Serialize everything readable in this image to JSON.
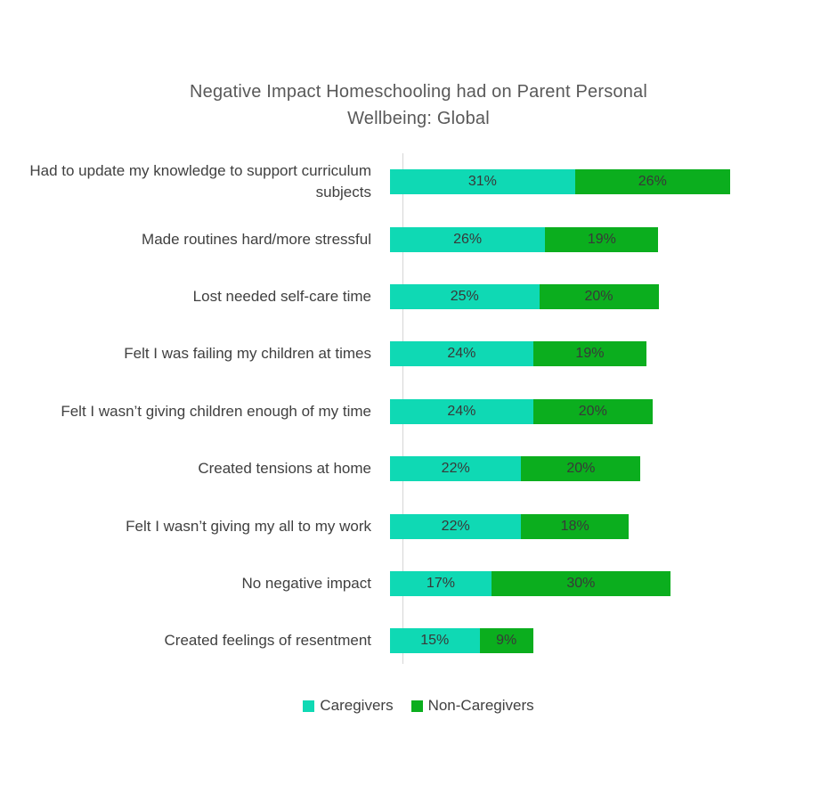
{
  "title": "Negative Impact Homeschooling had on Parent Personal Wellbeing: Global",
  "chart_data": {
    "type": "bar",
    "orientation": "horizontal",
    "stacked": true,
    "title": "Negative Impact Homeschooling had on Parent Personal Wellbeing: Global",
    "value_suffix": "%",
    "legend_position": "bottom",
    "grid": false,
    "axis_color": "#d6d6d6",
    "categories": [
      "Had to update my knowledge to support curriculum subjects",
      "Made routines hard/more stressful",
      "Lost needed self-care time",
      "Felt I was failing my children at times",
      "Felt I wasn’t giving children enough of my time",
      "Created tensions at home",
      "Felt I wasn’t giving my all to my work",
      "No negative impact",
      "Created feelings of resentment"
    ],
    "series": [
      {
        "name": "Caregivers",
        "color": "#0FD9B4",
        "values": [
          31,
          26,
          25,
          24,
          24,
          22,
          22,
          17,
          15
        ]
      },
      {
        "name": "Non-Caregivers",
        "color": "#0BAE1E",
        "values": [
          26,
          19,
          20,
          19,
          20,
          20,
          18,
          30,
          9
        ]
      }
    ]
  },
  "legend": {
    "items": [
      {
        "label": "Caregivers",
        "color": "#0FD9B4"
      },
      {
        "label": "Non-Caregivers",
        "color": "#0BAE1E"
      }
    ]
  }
}
